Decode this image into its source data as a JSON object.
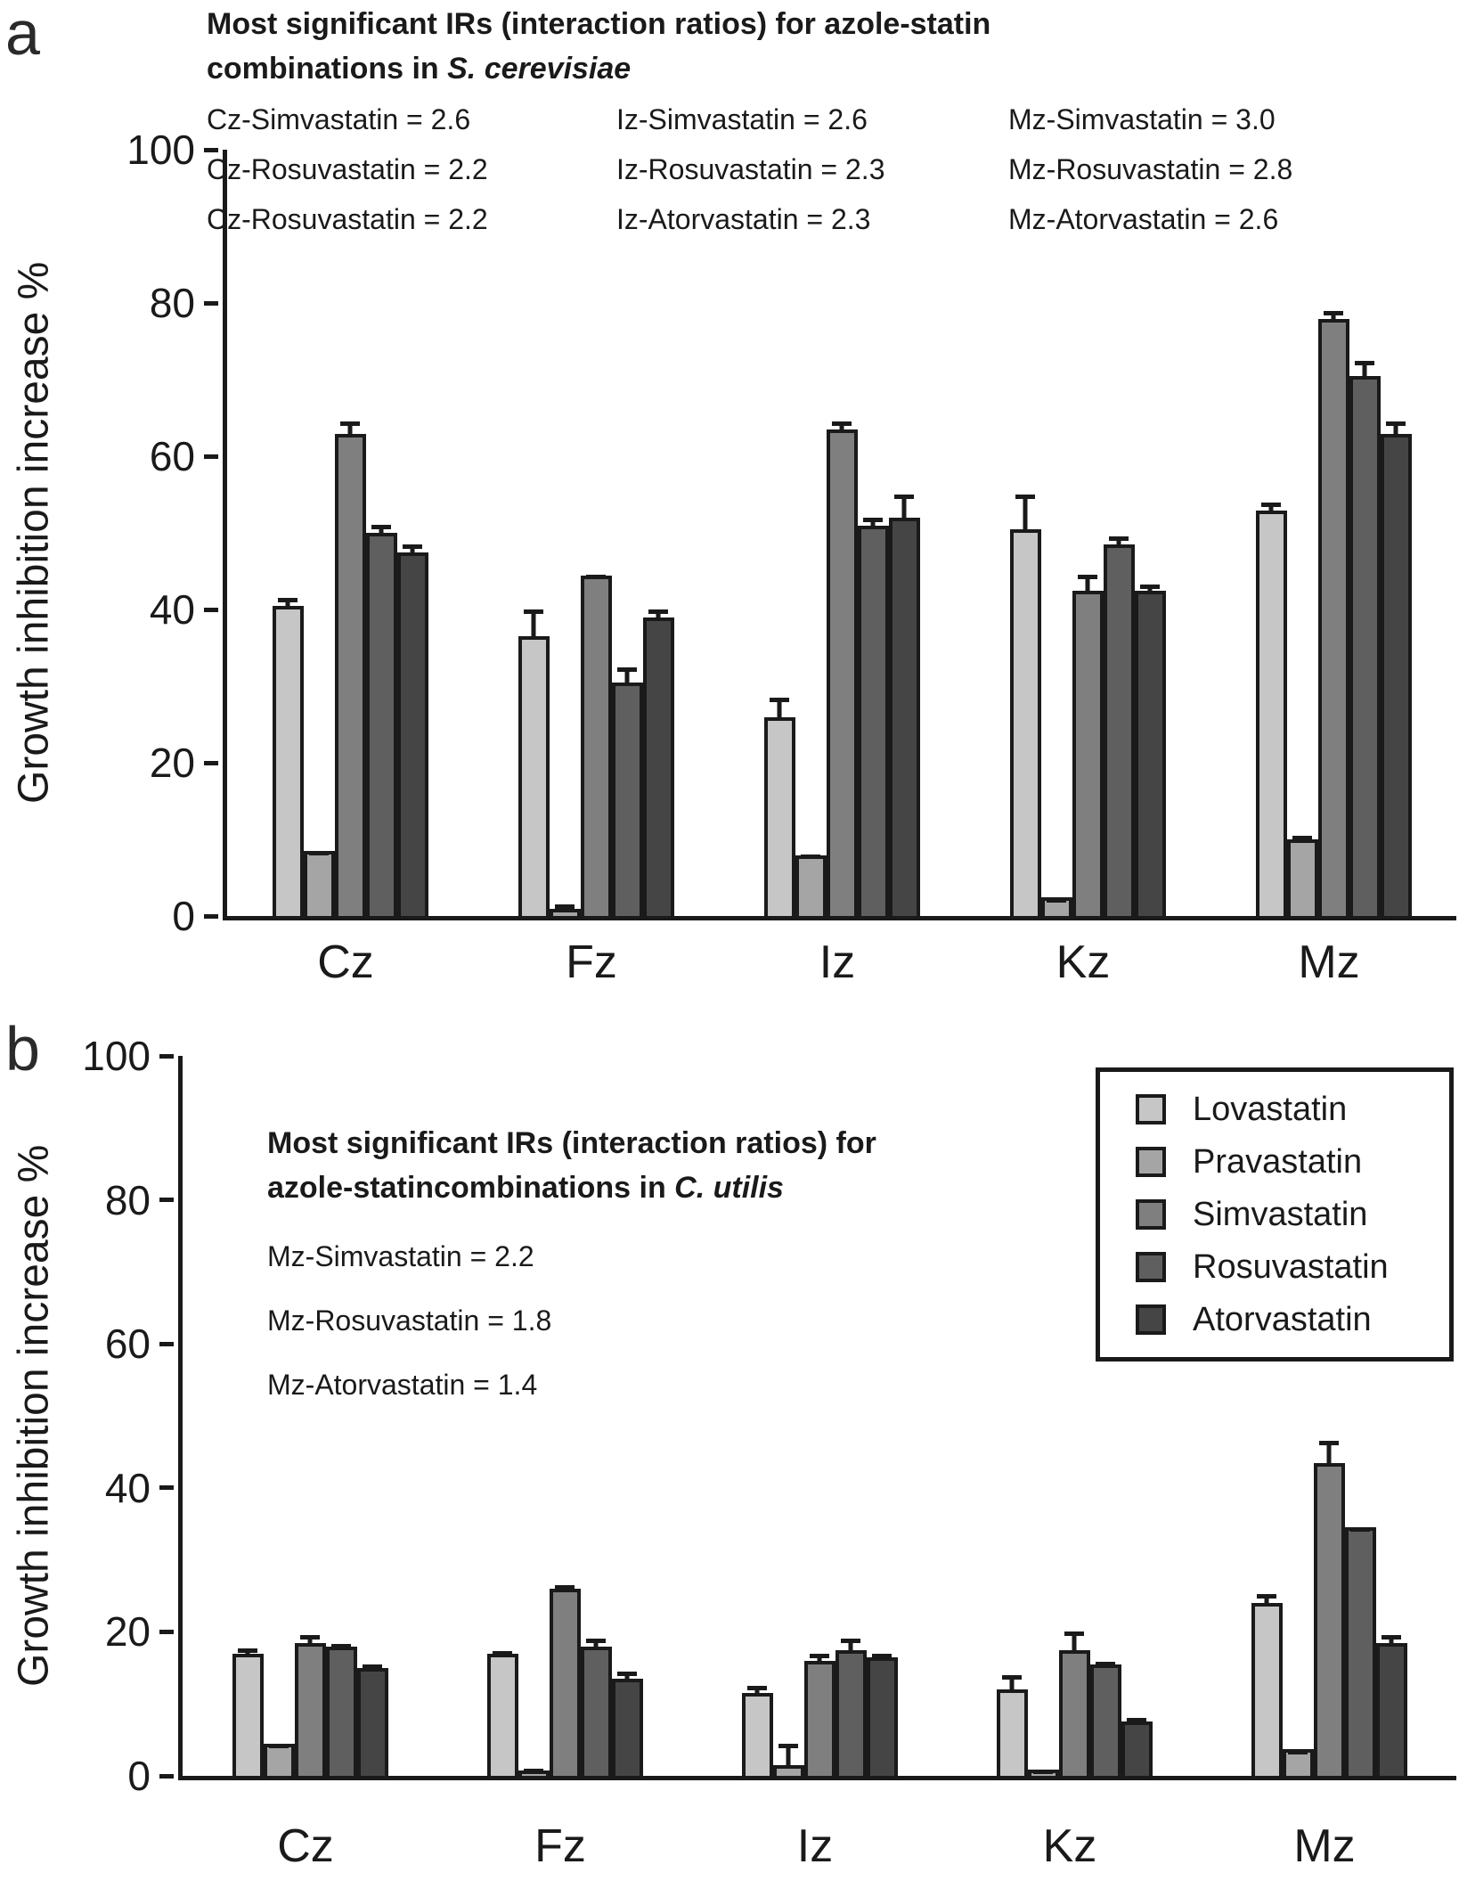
{
  "figure": {
    "panel_a_letter": "a",
    "panel_b_letter": "b"
  },
  "chart_data": [
    {
      "id": "panel-a",
      "type": "bar",
      "title_line1": "Most significant IRs (interaction ratios) for azole-statin",
      "title_line2_plain": "combinations in ",
      "title_line2_italic": "S. cerevisiae",
      "annotation_columns": [
        [
          "Cz-Simvastatin = 2.6",
          "Cz-Rosuvastatin = 2.2",
          "Cz-Rosuvastatin = 2.2"
        ],
        [
          "Iz-Simvastatin = 2.6",
          "Iz-Rosuvastatin = 2.3",
          "Iz-Atorvastatin = 2.3"
        ],
        [
          "Mz-Simvastatin = 3.0",
          "Mz-Rosuvastatin = 2.8",
          "Mz-Atorvastatin = 2.6"
        ]
      ],
      "ylabel": "Growth inhibition increase %",
      "ylim": [
        0,
        100
      ],
      "yticks": [
        0,
        20,
        40,
        60,
        80,
        100
      ],
      "grid": false,
      "legend_position": "none",
      "categories": [
        "Cz",
        "Fz",
        "Iz",
        "Kz",
        "Mz"
      ],
      "series": [
        {
          "name": "Lovastatin",
          "color": "#c6c6c6",
          "values": [
            40,
            36,
            25.5,
            50,
            52.5
          ],
          "errors": [
            1.5,
            4,
            3,
            5,
            1.5
          ]
        },
        {
          "name": "Pravastatin",
          "color": "#a5a5a5",
          "values": [
            8,
            0.5,
            7.5,
            2,
            9.5
          ],
          "errors": [
            0.5,
            1,
            0.5,
            0.3,
            1
          ]
        },
        {
          "name": "Simvastatin",
          "color": "#7f7f7f",
          "values": [
            62.5,
            44,
            63,
            42,
            77.5
          ],
          "errors": [
            2,
            0.5,
            1.5,
            2.5,
            1.5
          ]
        },
        {
          "name": "Rosuvastatin",
          "color": "#5f5f5f",
          "values": [
            49.5,
            30,
            50.5,
            48,
            70
          ],
          "errors": [
            1.5,
            2.5,
            1.5,
            1.5,
            2.5
          ]
        },
        {
          "name": "Atorvastatin",
          "color": "#454545",
          "values": [
            47,
            38.5,
            51.5,
            42,
            62.5
          ],
          "errors": [
            1.5,
            1.5,
            3.5,
            1.3,
            2
          ]
        }
      ]
    },
    {
      "id": "panel-b",
      "type": "bar",
      "title_line1": "Most significant IRs (interaction ratios) for",
      "title_line2_plain": "azole-statincombinations in ",
      "title_line2_italic": "C. utilis",
      "annotations": [
        "Mz-Simvastatin = 2.2",
        "Mz-Rosuvastatin = 1.8",
        "Mz-Atorvastatin = 1.4"
      ],
      "ylabel": "Growth inhibition increase %",
      "ylim": [
        0,
        100
      ],
      "yticks": [
        0,
        20,
        40,
        60,
        80,
        100
      ],
      "grid": false,
      "legend_position": "top-right",
      "categories": [
        "Cz",
        "Fz",
        "Iz",
        "Kz",
        "Mz"
      ],
      "series": [
        {
          "name": "Lovastatin",
          "color": "#c6c6c6",
          "values": [
            16.5,
            16.5,
            11,
            11.5,
            23.5
          ],
          "errors": [
            1.2,
            0.8,
            1.5,
            2.5,
            1.8
          ]
        },
        {
          "name": "Pravastatin",
          "color": "#a5a5a5",
          "values": [
            4,
            0.2,
            1,
            0.4,
            3.2
          ],
          "errors": [
            0.4,
            0.8,
            3.5,
            0.5,
            0.4
          ]
        },
        {
          "name": "Simvastatin",
          "color": "#7f7f7f",
          "values": [
            18,
            25.5,
            15.5,
            17,
            43
          ],
          "errors": [
            1.6,
            1,
            1.4,
            3,
            3.5
          ]
        },
        {
          "name": "Rosuvastatin",
          "color": "#5f5f5f",
          "values": [
            17.5,
            17.5,
            17,
            15,
            34
          ],
          "errors": [
            0.8,
            1.6,
            2,
            0.8,
            0.5
          ]
        },
        {
          "name": "Atorvastatin",
          "color": "#454545",
          "values": [
            14.5,
            13,
            16,
            7,
            18
          ],
          "errors": [
            1,
            1.5,
            1,
            1,
            1.5
          ]
        }
      ]
    }
  ]
}
